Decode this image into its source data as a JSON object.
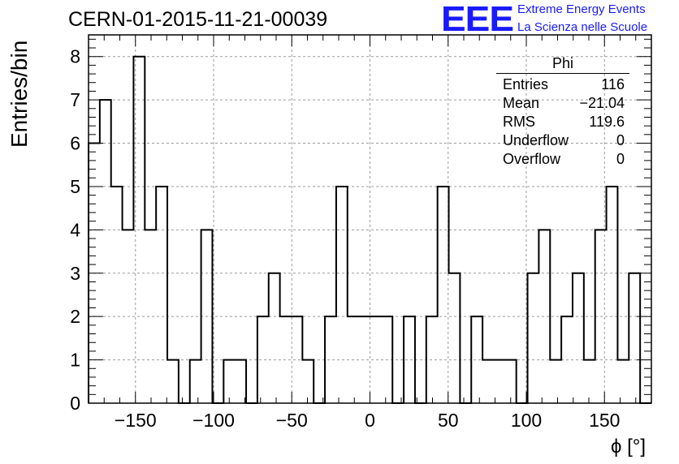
{
  "header": {
    "run_title": "CERN-01-2015-11-21-00039",
    "logo_text": "EEE",
    "logo_line1": "Extreme Energy Events",
    "logo_line2": "La Scienza nelle Scuole",
    "logo_color": "#1a1aff"
  },
  "stats_box": {
    "title": "Phi",
    "rows": [
      {
        "label": "Entries",
        "value": "116"
      },
      {
        "label": "Mean",
        "value": "−21.04"
      },
      {
        "label": "RMS",
        "value": "119.6"
      },
      {
        "label": "Underflow",
        "value": "0"
      },
      {
        "label": "Overflow",
        "value": "0"
      }
    ]
  },
  "chart_data": {
    "type": "bar",
    "histogram": true,
    "xlabel": "ϕ [°]",
    "ylabel": "Entries/bin",
    "xlim": [
      -180,
      180
    ],
    "ylim": [
      0,
      8.5
    ],
    "bin_width": 7.2,
    "grid": true,
    "x_ticks": [
      -150,
      -100,
      -50,
      0,
      50,
      100,
      150
    ],
    "x_tick_labels": [
      "−150",
      "−100",
      "−50",
      "0",
      "50",
      "100",
      "150"
    ],
    "y_ticks": [
      0,
      1,
      2,
      3,
      4,
      5,
      6,
      7,
      8
    ],
    "y_tick_labels": [
      "0",
      "1",
      "2",
      "3",
      "4",
      "5",
      "6",
      "7",
      "8"
    ],
    "values": [
      6,
      7,
      5,
      4,
      8,
      4,
      5,
      1,
      0,
      1,
      4,
      0,
      1,
      1,
      0,
      2,
      3,
      2,
      2,
      1,
      0,
      2,
      5,
      2,
      2,
      2,
      2,
      0,
      2,
      0,
      2,
      5,
      3,
      0,
      2,
      1,
      1,
      1,
      0,
      3,
      4,
      1,
      2,
      3,
      1,
      4,
      5,
      1,
      3,
      0
    ]
  }
}
